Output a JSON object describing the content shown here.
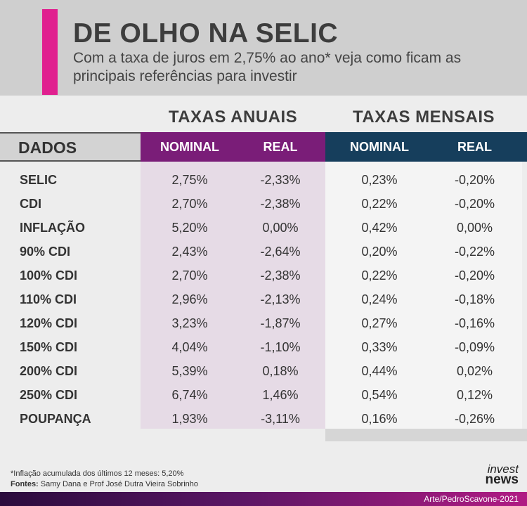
{
  "header": {
    "title": "DE OLHO NA SELIC",
    "subtitle": "Com a taxa de juros em 2,75% ao ano* veja como ficam as principais referências para investir"
  },
  "groups": {
    "annual": "TAXAS ANUAIS",
    "monthly": "TAXAS MENSAIS"
  },
  "columns": {
    "label": "DADOS",
    "annual_nominal": "NOMINAL",
    "annual_real": "REAL",
    "monthly_nominal": "NOMINAL",
    "monthly_real": "REAL"
  },
  "rows": [
    {
      "label": "SELIC",
      "an": "2,75%",
      "ar": "-2,33%",
      "mn": "0,23%",
      "mr": "-0,20%"
    },
    {
      "label": "CDI",
      "an": "2,70%",
      "ar": "-2,38%",
      "mn": "0,22%",
      "mr": "-0,20%"
    },
    {
      "label": "INFLAÇÃO",
      "an": "5,20%",
      "ar": "0,00%",
      "mn": "0,42%",
      "mr": "0,00%"
    },
    {
      "label": "90% CDI",
      "an": "2,43%",
      "ar": "-2,64%",
      "mn": "0,20%",
      "mr": "-0,22%"
    },
    {
      "label": "100% CDI",
      "an": "2,70%",
      "ar": "-2,38%",
      "mn": "0,22%",
      "mr": "-0,20%"
    },
    {
      "label": "110% CDI",
      "an": "2,96%",
      "ar": "-2,13%",
      "mn": "0,24%",
      "mr": "-0,18%"
    },
    {
      "label": "120% CDI",
      "an": "3,23%",
      "ar": "-1,87%",
      "mn": "0,27%",
      "mr": "-0,16%"
    },
    {
      "label": "150% CDI",
      "an": "4,04%",
      "ar": "-1,10%",
      "mn": "0,33%",
      "mr": "-0,09%"
    },
    {
      "label": "200% CDI",
      "an": "5,39%",
      "ar": "0,18%",
      "mn": "0,44%",
      "mr": "0,02%"
    },
    {
      "label": "250% CDI",
      "an": "6,74%",
      "ar": "1,46%",
      "mn": "0,54%",
      "mr": "0,12%"
    },
    {
      "label": "POUPANÇA",
      "an": "1,93%",
      "ar": "-3,11%",
      "mn": "0,16%",
      "mr": "-0,26%"
    }
  ],
  "footer": {
    "footnote": "*Inflação acumulada dos últimos 12 meses: 5,20%",
    "sources_label": "Fontes:",
    "sources": "Samy Dana e Prof José Dutra Vieira Sobrinho",
    "logo_top": "invest",
    "logo_bottom": "news",
    "credit": "Arte/PedroScavone-2021"
  },
  "colors": {
    "accent": "#e0208f",
    "annual_header": "#7a1d78",
    "monthly_header": "#163e5c"
  }
}
